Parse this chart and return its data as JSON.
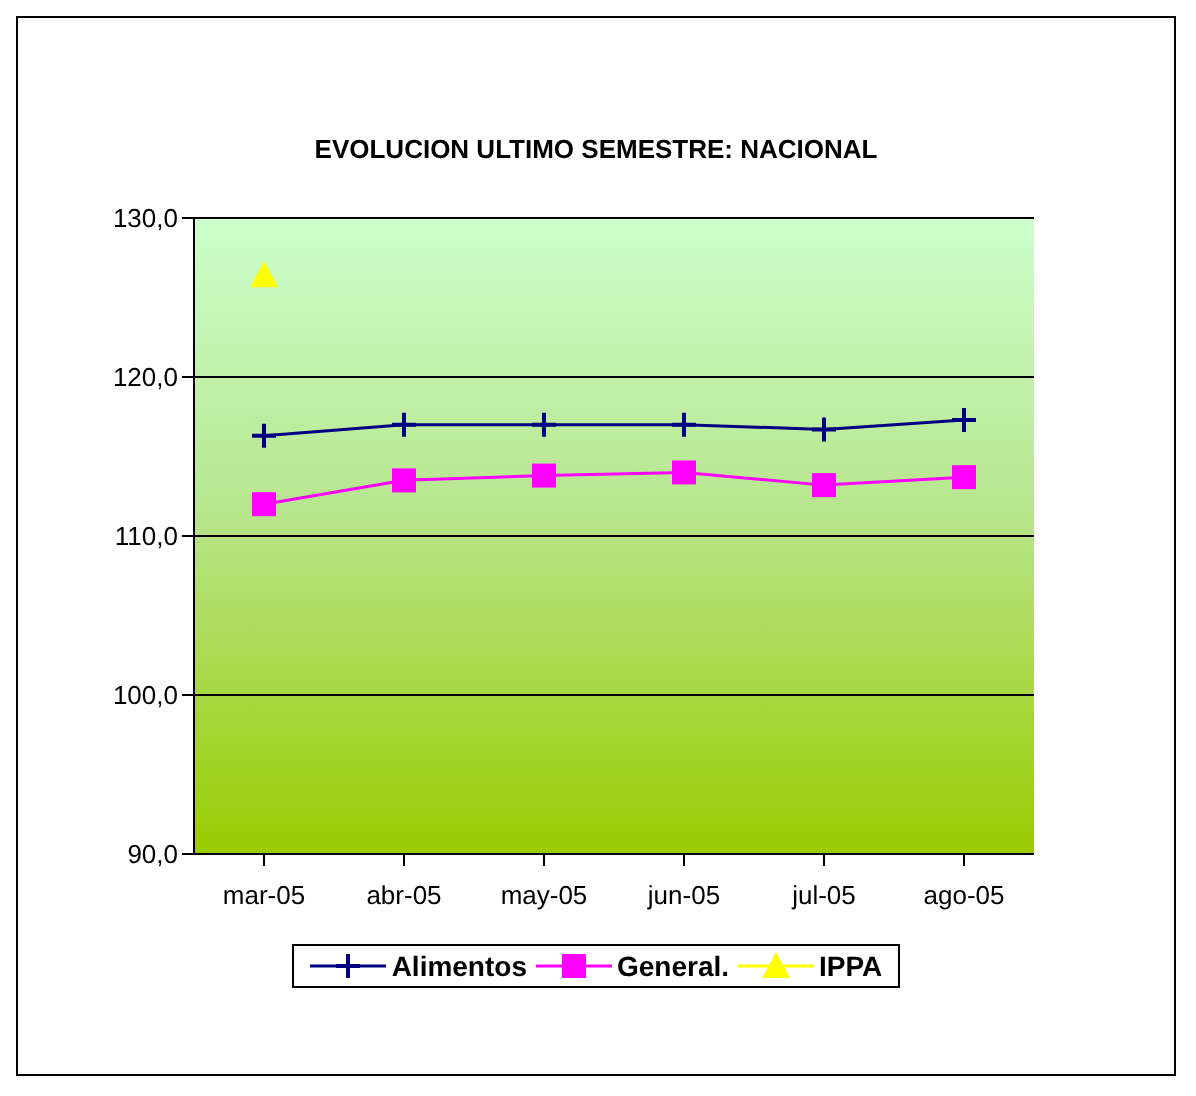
{
  "chart_data": {
    "type": "line",
    "title": "EVOLUCION ULTIMO SEMESTRE: NACIONAL",
    "categories": [
      "mar-05",
      "abr-05",
      "may-05",
      "jun-05",
      "jul-05",
      "ago-05"
    ],
    "series": [
      {
        "name": "Alimentos",
        "color": "#000080",
        "marker": "cross",
        "values": [
          116.3,
          117.0,
          117.0,
          117.0,
          116.7,
          117.3
        ]
      },
      {
        "name": "General.",
        "color": "#ff00ff",
        "marker": "square",
        "values": [
          112.0,
          113.5,
          113.8,
          114.0,
          113.2,
          113.7
        ]
      },
      {
        "name": "IPPA",
        "color": "#ffff00",
        "marker": "triangle",
        "values": [
          126.4,
          null,
          null,
          null,
          null,
          null
        ]
      }
    ],
    "ylim": [
      90,
      130
    ],
    "yticks": [
      {
        "value": 90,
        "label": "90,0"
      },
      {
        "value": 100,
        "label": "100,0"
      },
      {
        "value": 110,
        "label": "110,0"
      },
      {
        "value": 120,
        "label": "120,0"
      },
      {
        "value": 130,
        "label": "130,0"
      }
    ],
    "grid": "y",
    "legend": "bottom"
  }
}
